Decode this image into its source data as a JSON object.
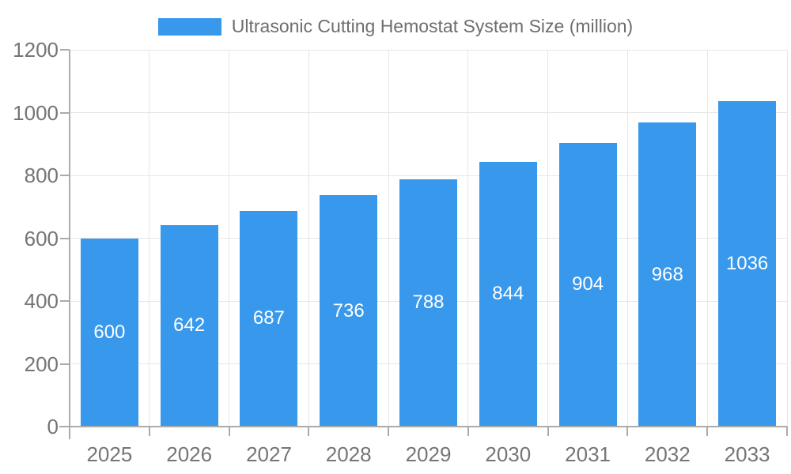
{
  "legend": {
    "label": "Ultrasonic Cutting Hemostat System Size (million)"
  },
  "chart_data": {
    "type": "bar",
    "title": "Ultrasonic Cutting Hemostat System Size (million)",
    "categories": [
      "2025",
      "2026",
      "2027",
      "2028",
      "2029",
      "2030",
      "2031",
      "2032",
      "2033"
    ],
    "values": [
      600,
      642,
      687,
      736,
      788,
      844,
      904,
      968,
      1036
    ],
    "xlabel": "",
    "ylabel": "",
    "ylim": [
      0,
      1200
    ],
    "yticks": [
      0,
      200,
      400,
      600,
      800,
      1000,
      1200
    ],
    "grid": true,
    "legend_position": "top",
    "bar_labels": "inside-center",
    "colors": {
      "bar": "#3898ec",
      "bar_label": "#ffffff",
      "axis_text": "#757575",
      "legend_text": "#6e6e6e",
      "gridline": "#e6e6e6",
      "axis_line": "#ababab"
    }
  }
}
